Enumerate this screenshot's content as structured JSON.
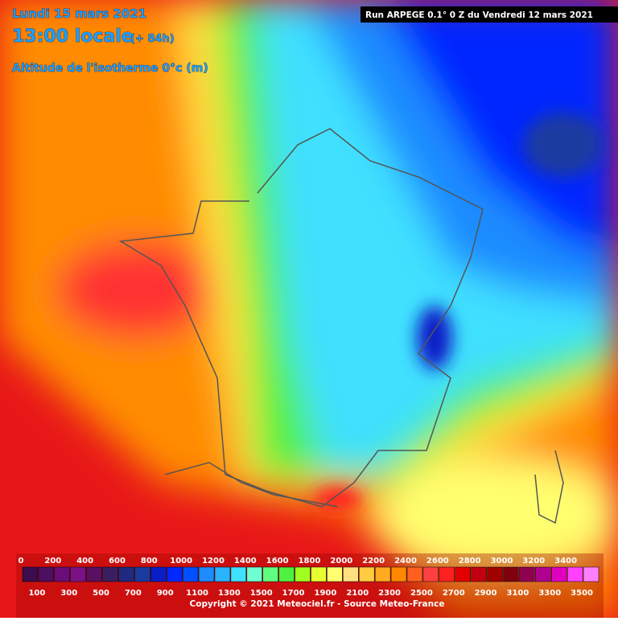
{
  "header": {
    "date": "Lundi 15 mars 2021",
    "time": "13:00 locale",
    "lead": "(+ 84h)",
    "variable": "Altitude de l'isotherme 0°c (m)",
    "run": "Run ARPEGE 0.1° 0 Z du Vendredi 12 mars 2021"
  },
  "colorbar": {
    "levels": [
      0,
      100,
      200,
      300,
      400,
      500,
      600,
      700,
      800,
      900,
      1000,
      1100,
      1200,
      1300,
      1400,
      1500,
      1600,
      1700,
      1800,
      1900,
      2000,
      2100,
      2200,
      2300,
      2400,
      2500,
      2600,
      2700,
      2800,
      2900,
      3000,
      3100,
      3200,
      3300,
      3400,
      3500
    ],
    "colors": [
      "#3c0c4c",
      "#4d0f5f",
      "#6a0d7a",
      "#7a1285",
      "#5a1060",
      "#3a1f60",
      "#1f2a80",
      "#1a3aa0",
      "#0a1ec8",
      "#0028ff",
      "#0050ff",
      "#1e8cff",
      "#2ab4ff",
      "#40e0ff",
      "#70ffd0",
      "#60ff80",
      "#50f040",
      "#a0ff20",
      "#e6ff30",
      "#ffff70",
      "#ffe080",
      "#ffcc40",
      "#ffaa20",
      "#ff8800",
      "#ff6020",
      "#ff4040",
      "#ff2020",
      "#e00000",
      "#c00010",
      "#a00000",
      "#800010",
      "#900050",
      "#b00090",
      "#e000c0",
      "#ff40ff",
      "#ff80ff"
    ]
  },
  "footer": {
    "copyright": "Copyright © 2021 Meteociel.fr - Source Meteo-France"
  }
}
